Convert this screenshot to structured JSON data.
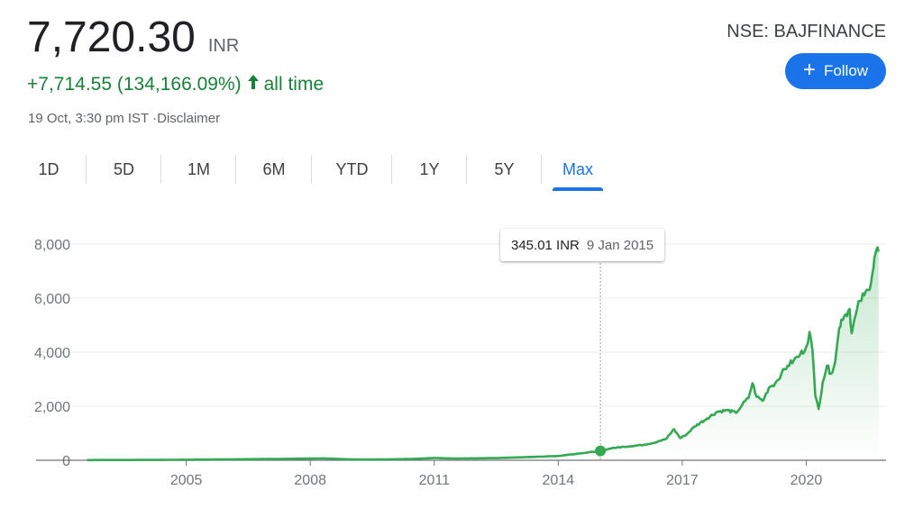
{
  "quote": {
    "price": "7,720.30",
    "currency": "INR",
    "change": "+7,714.55 (134,166.09%)",
    "period": "all time",
    "timestamp": "19 Oct, 3:30 pm IST ·Disclaimer",
    "ticker": "NSE: BAJFINANCE",
    "follow_label": "Follow"
  },
  "tabs": [
    "1D",
    "5D",
    "1M",
    "6M",
    "YTD",
    "1Y",
    "5Y",
    "Max"
  ],
  "active_tab": "Max",
  "tooltip": {
    "value": "345.01 INR",
    "date": "9 Jan 2015"
  },
  "colors": {
    "line": "#34a853",
    "positive": "#188038",
    "accent": "#1a73e8"
  },
  "chart_data": {
    "type": "area",
    "title": "",
    "xlabel": "",
    "ylabel": "",
    "xlim": [
      2002.5,
      2021.8
    ],
    "ylim": [
      0,
      8000
    ],
    "x_ticks": [
      2005,
      2008,
      2011,
      2014,
      2017,
      2020
    ],
    "y_ticks": [
      0,
      2000,
      4000,
      6000,
      8000
    ],
    "y_tick_labels": [
      "0",
      "2,000",
      "4,000",
      "6,000",
      "8,000"
    ],
    "grid": true,
    "highlight": {
      "x": 2015.02,
      "y": 345.01
    },
    "series": [
      {
        "x": [
          2002.6,
          2003.5,
          2004.5,
          2005.5,
          2006.5,
          2007.5,
          2008.3,
          2009.0,
          2009.5,
          2010.5,
          2011.0,
          2011.5,
          2012.5,
          2013.5,
          2014.0,
          2014.5,
          2015.02,
          2015.3,
          2015.6,
          2016.0,
          2016.3,
          2016.6,
          2016.8,
          2016.95,
          2017.1,
          2017.3,
          2017.6,
          2017.85,
          2018.1,
          2018.3,
          2018.45,
          2018.6,
          2018.7,
          2018.8,
          2018.95,
          2019.1,
          2019.25,
          2019.4,
          2019.55,
          2019.7,
          2019.85,
          2020.0,
          2020.08,
          2020.15,
          2020.22,
          2020.3,
          2020.4,
          2020.5,
          2020.6,
          2020.7,
          2020.8,
          2020.85,
          2020.95,
          2021.05,
          2021.1,
          2021.2,
          2021.3,
          2021.4,
          2021.5,
          2021.6,
          2021.65,
          2021.7,
          2021.75
        ],
        "y": [
          8,
          10,
          15,
          25,
          40,
          55,
          70,
          30,
          25,
          50,
          85,
          65,
          80,
          130,
          160,
          250,
          345.01,
          450,
          500,
          560,
          640,
          780,
          1150,
          820,
          950,
          1250,
          1550,
          1800,
          1850,
          1750,
          2050,
          2300,
          2850,
          2350,
          2200,
          2700,
          2850,
          3200,
          3500,
          3700,
          3900,
          4200,
          4750,
          4100,
          2400,
          1900,
          2900,
          3500,
          3200,
          3650,
          4900,
          5200,
          5400,
          5600,
          4700,
          5400,
          5900,
          6100,
          6300,
          6900,
          7500,
          7800,
          7720.3
        ]
      }
    ]
  }
}
